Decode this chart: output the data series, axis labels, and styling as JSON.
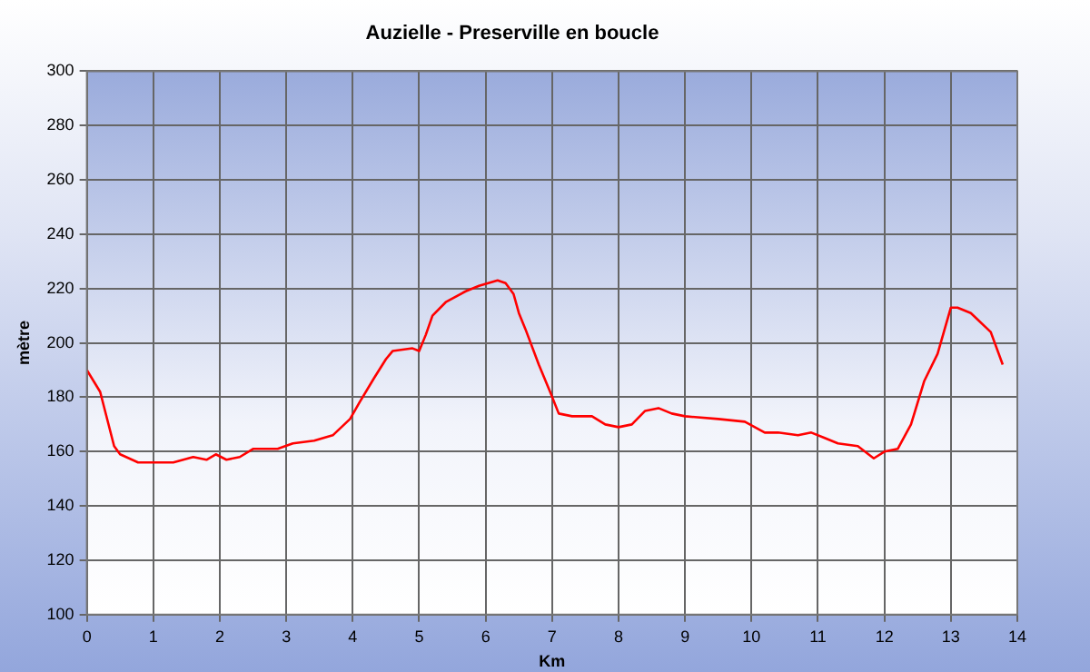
{
  "chart_data": {
    "type": "line",
    "title": "Auzielle - Preserville en boucle",
    "xlabel": "Km",
    "ylabel": "mètre",
    "x": [
      0,
      0.2,
      0.41,
      0.5,
      0.77,
      1.0,
      1.3,
      1.6,
      1.8,
      1.94,
      2.1,
      2.3,
      2.5,
      2.87,
      3.1,
      3.42,
      3.7,
      3.96,
      4.1,
      4.32,
      4.5,
      4.6,
      4.9,
      5.0,
      5.1,
      5.2,
      5.4,
      5.7,
      5.9,
      6.18,
      6.3,
      6.42,
      6.5,
      6.6,
      6.8,
      6.97,
      7.1,
      7.3,
      7.6,
      7.8,
      8.0,
      8.2,
      8.4,
      8.6,
      8.8,
      9.0,
      9.5,
      9.9,
      10.2,
      10.4,
      10.7,
      10.9,
      11.1,
      11.3,
      11.6,
      11.84,
      12.0,
      12.2,
      12.4,
      12.6,
      12.8,
      13.0,
      13.1,
      13.3,
      13.6,
      13.78
    ],
    "series": [
      {
        "color": "#ff0000",
        "values": [
          190,
          182,
          162,
          159,
          156,
          156,
          156,
          158,
          157,
          159,
          157,
          158,
          161,
          161,
          163,
          164,
          166,
          172,
          178,
          187,
          194,
          197,
          198,
          197,
          203,
          210,
          215,
          219,
          221,
          223,
          222,
          218,
          211,
          205,
          192,
          182,
          174,
          173,
          173,
          170,
          169,
          170,
          175,
          176,
          174,
          173,
          172,
          171,
          167,
          167,
          166,
          167,
          165,
          163,
          162,
          157.5,
          160,
          161,
          170,
          186,
          196,
          213,
          213,
          211,
          204,
          192
        ]
      }
    ],
    "xlim": [
      0,
      14
    ],
    "xticks": [
      0,
      1,
      2,
      3,
      4,
      5,
      6,
      7,
      8,
      9,
      10,
      11,
      12,
      13,
      14
    ],
    "ylim": [
      100,
      300
    ],
    "yticks": [
      100,
      120,
      140,
      160,
      180,
      200,
      220,
      240,
      260,
      280,
      300
    ],
    "grid": true,
    "legend": false,
    "marker": "none",
    "line_style": "solid"
  }
}
